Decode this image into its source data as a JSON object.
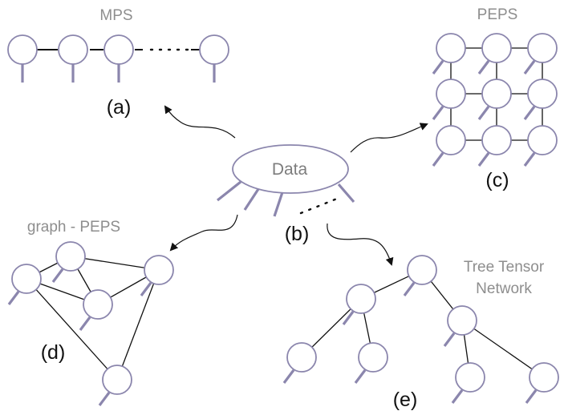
{
  "center": {
    "label": "Data",
    "tag": "(b)"
  },
  "mps": {
    "title": "MPS",
    "tag": "(a)"
  },
  "peps": {
    "title": "PEPS",
    "tag": "(c)"
  },
  "graph_peps": {
    "title": "graph - PEPS",
    "tag": "(d)"
  },
  "ttn": {
    "title_line1": "Tree Tensor",
    "title_line2": "Network",
    "tag": "(e)"
  },
  "colors": {
    "node_stroke": "#8b86ad",
    "bond": "#111111",
    "title_text": "#8e8e8e"
  }
}
